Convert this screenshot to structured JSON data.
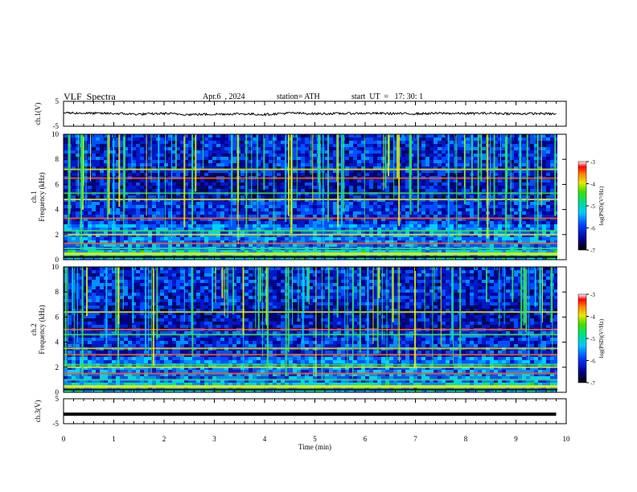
{
  "header": {
    "title": "VLF  Spectra",
    "date": "Apr.6  , 2024",
    "station": "station= ATH",
    "start": "start  UT  =   17: 30: 1"
  },
  "colors": {
    "trace": "#000000",
    "axis": "#000000"
  },
  "chart_data": [
    {
      "type": "line",
      "panel": "ch1",
      "ylabel": "ch.1(V)",
      "ylim": [
        -5,
        5
      ],
      "yticks": [
        5,
        -5
      ],
      "x": [
        0,
        0.5,
        1,
        1.5,
        2,
        2.5,
        3,
        3.5,
        4,
        4.5,
        5,
        5.5,
        6,
        6.5,
        7,
        7.5,
        8,
        8.5,
        9,
        9.5,
        9.8
      ],
      "y": [
        0.4,
        0.2,
        0.1,
        -0.2,
        0.1,
        -0.3,
        -0.2,
        0.0,
        -0.3,
        0.3,
        0.0,
        0.1,
        0.2,
        0.1,
        0.0,
        0.2,
        0.1,
        0.2,
        0.0,
        0.1,
        -0.1
      ]
    },
    {
      "type": "heatmap",
      "panel": "ch1-spectrogram",
      "ylabel": "ch.1\nFrequency (kHz)",
      "ylim": [
        0,
        10
      ],
      "yticks": [
        0,
        2,
        4,
        6,
        8,
        10
      ],
      "colorbar": {
        "label": "log(PSD)(V²/Hz)",
        "range": [
          -7,
          -3
        ],
        "ticks": [
          -3,
          -4,
          -5,
          -6,
          -7
        ]
      },
      "bands_khz": [
        0.5,
        0.9,
        1.3,
        2.0,
        2.3,
        3.3,
        4.8,
        5.3,
        6.5,
        7.2
      ]
    },
    {
      "type": "heatmap",
      "panel": "ch2-spectrogram",
      "ylabel": "ch.2\nFrequency (kHz)",
      "ylim": [
        0,
        10
      ],
      "yticks": [
        0,
        2,
        4,
        6,
        8,
        10
      ],
      "colorbar": {
        "label": "log(PSD)(V²/Hz)",
        "range": [
          -7,
          -3
        ],
        "ticks": [
          -3,
          -4,
          -5,
          -6,
          -7
        ]
      },
      "bands_khz": [
        0.5,
        1.0,
        1.5,
        2.0,
        2.2,
        3.0,
        3.5,
        4.6,
        5.0,
        6.4
      ]
    },
    {
      "type": "line",
      "panel": "ch3",
      "ylabel": "ch.3(V)",
      "ylim": [
        -5,
        5
      ],
      "yticks": [
        5,
        -5
      ],
      "x": [
        0,
        9.8
      ],
      "y": [
        -1.2,
        -1.2
      ]
    }
  ],
  "xaxis": {
    "label": "Time  (min)",
    "range": [
      0,
      10
    ],
    "ticks": [
      0,
      1,
      2,
      3,
      4,
      5,
      6,
      7,
      8,
      9,
      10
    ]
  }
}
